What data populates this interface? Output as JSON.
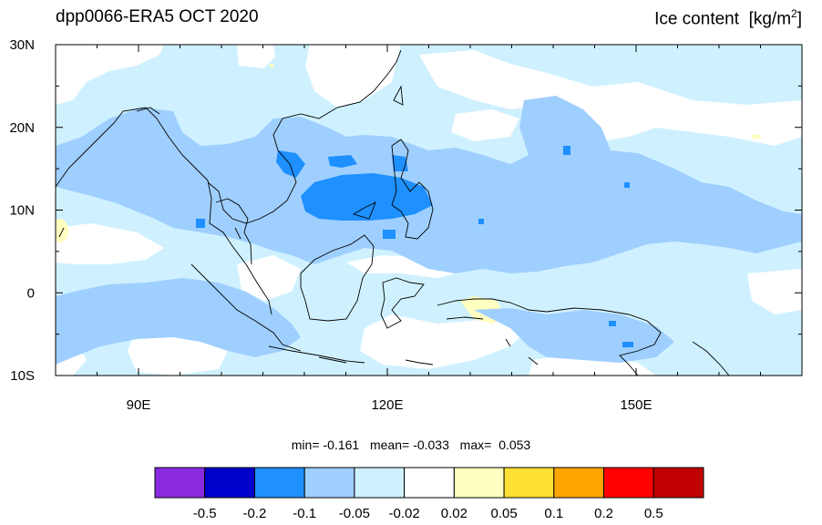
{
  "header": {
    "left_title": "dpp0066-ERA5 OCT 2020",
    "right_title": "Ice content",
    "right_units_pre": "[kg/m",
    "right_units_sup": "2",
    "right_units_post": "]"
  },
  "map": {
    "lat_labels": [
      "30N",
      "20N",
      "10N",
      "0",
      "10S"
    ],
    "lon_labels": [
      "90E",
      "120E",
      "150E"
    ],
    "extent": {
      "lon_min": 80,
      "lon_max": 170,
      "lat_min": -10,
      "lat_max": 30
    },
    "lat_ticks": [
      30,
      20,
      10,
      0,
      -10
    ],
    "lon_ticks": [
      90,
      120,
      150
    ]
  },
  "stats": {
    "min_label": "min=",
    "min_value": "-0.161",
    "mean_label": "mean=",
    "mean_value": "-0.033",
    "max_label": "max=",
    "max_value": "0.053"
  },
  "colorbar": {
    "colors": [
      "#8a2be2",
      "#0000cd",
      "#1e90ff",
      "#9fcfff",
      "#cff1ff",
      "#ffffff",
      "#ffffc0",
      "#ffdf33",
      "#ffa500",
      "#ff0000",
      "#c00000"
    ],
    "labels": [
      "-0.5",
      "-0.2",
      "-0.1",
      "-0.05",
      "-0.02",
      "0.02",
      "0.05",
      "0.1",
      "0.2",
      "0.5"
    ]
  }
}
